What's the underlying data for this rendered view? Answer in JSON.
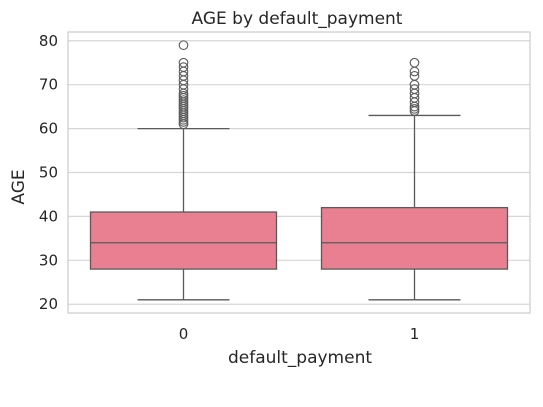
{
  "chart_data": {
    "type": "box",
    "title": "AGE by default_payment",
    "xlabel": "default_payment",
    "ylabel": "AGE",
    "categories": [
      "0",
      "1"
    ],
    "ylim": [
      18,
      82
    ],
    "yticks": [
      20,
      30,
      40,
      50,
      60,
      70,
      80
    ],
    "grid": "horizontal",
    "box_color": "#e88091",
    "line_color": "#5a5a5a",
    "boxes": [
      {
        "category": "0",
        "whisker_low": 21,
        "q1": 28,
        "median": 34,
        "q3": 41,
        "whisker_high": 60,
        "outliers": [
          61,
          61.5,
          62,
          62.5,
          63,
          63.5,
          64,
          64.5,
          65,
          65.5,
          66,
          66.5,
          67,
          67.5,
          68,
          69,
          70,
          71,
          72,
          73,
          74,
          75,
          79
        ]
      },
      {
        "category": "1",
        "whisker_low": 21,
        "q1": 28,
        "median": 34,
        "q3": 42,
        "whisker_high": 63,
        "outliers": [
          64,
          64.5,
          65,
          66,
          67,
          68,
          69,
          70,
          72,
          73,
          75
        ]
      }
    ]
  }
}
